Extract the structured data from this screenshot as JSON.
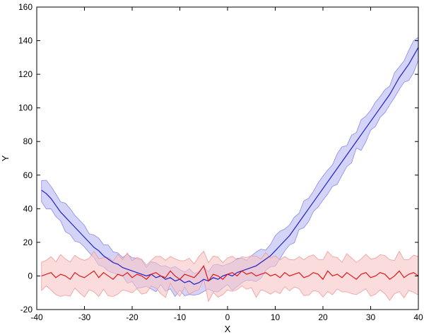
{
  "chart_data": {
    "type": "line",
    "title": "",
    "xlabel": "X",
    "ylabel": "Y",
    "xlim": [
      -40,
      40
    ],
    "ylim": [
      -20,
      160
    ],
    "xticks": [
      -40,
      -30,
      -20,
      -10,
      0,
      10,
      20,
      30,
      40
    ],
    "yticks": [
      -20,
      0,
      20,
      40,
      60,
      80,
      100,
      120,
      140,
      160
    ],
    "grid": false,
    "legend": "none",
    "series": [
      {
        "color": "#2020c8",
        "band_color": "#b8b8f5",
        "band_edge_color": "#8a8ae8",
        "x": [
          -39,
          -38,
          -37,
          -36,
          -35,
          -34,
          -33,
          -32,
          -31,
          -30,
          -29,
          -28,
          -27,
          -26,
          -25,
          -24,
          -23,
          -22,
          -21,
          -20,
          -19,
          -18,
          -17,
          -16,
          -15,
          -14,
          -13,
          -12,
          -11,
          -10,
          -9,
          -8,
          -7,
          -6,
          -5,
          -4,
          -3,
          -2,
          -1,
          0,
          1,
          2,
          3,
          4,
          5,
          6,
          7,
          8,
          9,
          10,
          11,
          12,
          13,
          14,
          15,
          16,
          17,
          18,
          19,
          20,
          21,
          22,
          23,
          24,
          25,
          26,
          27,
          28,
          29,
          30,
          31,
          32,
          33,
          34,
          35,
          36,
          37,
          38,
          39,
          40
        ],
        "values": [
          51,
          49,
          46,
          42,
          38,
          35,
          32,
          29,
          26,
          23,
          20,
          17,
          15,
          12,
          10,
          8,
          7,
          5,
          4,
          3,
          2,
          1,
          0,
          1,
          -1,
          0,
          -2,
          -1,
          -3,
          -2,
          -4,
          -3,
          -5,
          -4,
          -2,
          -3,
          -1,
          -2,
          0,
          1,
          0,
          2,
          3,
          4,
          5,
          6,
          8,
          10,
          12,
          15,
          18,
          21,
          24,
          28,
          32,
          36,
          40,
          44,
          48,
          52,
          56,
          60,
          64,
          68,
          72,
          76,
          80,
          84,
          88,
          92,
          96,
          100,
          104,
          108,
          113,
          118,
          122,
          126,
          131,
          136
        ],
        "band": 7
      },
      {
        "color": "#e01818",
        "band_color": "#f8c4c4",
        "band_edge_color": "#f09a9a",
        "x": [
          -39,
          -38,
          -37,
          -36,
          -35,
          -34,
          -33,
          -32,
          -31,
          -30,
          -29,
          -28,
          -27,
          -26,
          -25,
          -24,
          -23,
          -22,
          -21,
          -20,
          -19,
          -18,
          -17,
          -16,
          -15,
          -14,
          -13,
          -12,
          -11,
          -10,
          -9,
          -8,
          -7,
          -6,
          -5,
          -4,
          -3,
          -2,
          -1,
          0,
          1,
          2,
          3,
          4,
          5,
          6,
          7,
          8,
          9,
          10,
          11,
          12,
          13,
          14,
          15,
          16,
          17,
          18,
          19,
          20,
          21,
          22,
          23,
          24,
          25,
          26,
          27,
          28,
          29,
          30,
          31,
          32,
          33,
          34,
          35,
          36,
          37,
          38,
          39,
          40
        ],
        "values": [
          0,
          1,
          2,
          -1,
          1,
          0,
          -2,
          2,
          0,
          -1,
          1,
          3,
          -1,
          2,
          0,
          -2,
          1,
          0,
          2,
          -1,
          1,
          0,
          -2,
          1,
          2,
          0,
          -1,
          3,
          0,
          -2,
          1,
          0,
          -1,
          2,
          6,
          -3,
          1,
          0,
          -2,
          1,
          2,
          0,
          3,
          1,
          2,
          0,
          1,
          2,
          0,
          1,
          -1,
          2,
          0,
          1,
          2,
          -1,
          0,
          2,
          1,
          -2,
          3,
          0,
          1,
          -1,
          2,
          0,
          -2,
          1,
          2,
          -1,
          0,
          2,
          1,
          -2,
          0,
          3,
          -1,
          1,
          2,
          0
        ],
        "band": 10
      }
    ]
  }
}
